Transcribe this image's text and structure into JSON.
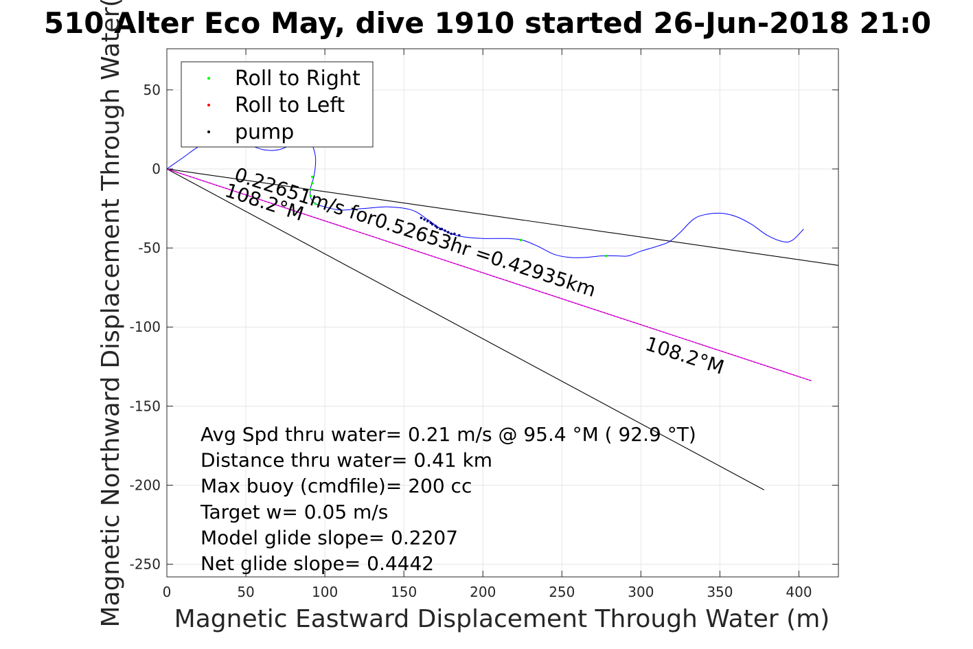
{
  "chart_data": {
    "type": "line",
    "title": "510 Alter Eco May, dive 1910 started 26-Jun-2018 21:0",
    "xlabel": "Magnetic Eastward Displacement Through Water (m)",
    "ylabel": "Magnetic Northward Displacement Through Water(",
    "xlim": [
      0,
      425
    ],
    "ylim": [
      -258,
      76
    ],
    "xticks": [
      0,
      50,
      100,
      150,
      200,
      250,
      300,
      350,
      400
    ],
    "yticks": [
      50,
      0,
      -50,
      -100,
      -150,
      -200,
      -250
    ],
    "grid": true,
    "legend_position": "top-left",
    "legend": [
      {
        "label": "Roll to Right",
        "color": "#00ff00"
      },
      {
        "label": "Roll to Left",
        "color": "#ff0000"
      },
      {
        "label": "pump",
        "color": "#000000"
      }
    ],
    "track": {
      "color": "#0000ff",
      "points": [
        [
          0,
          0
        ],
        [
          10,
          7
        ],
        [
          20,
          14
        ],
        [
          30,
          18
        ],
        [
          45,
          17
        ],
        [
          55,
          14
        ],
        [
          62,
          12
        ],
        [
          70,
          12
        ],
        [
          78,
          15
        ],
        [
          85,
          20
        ],
        [
          88,
          20
        ],
        [
          92,
          15
        ],
        [
          94,
          8
        ],
        [
          94,
          2
        ],
        [
          93,
          -5
        ],
        [
          91,
          -12
        ],
        [
          91,
          -18
        ],
        [
          94,
          -22
        ],
        [
          100,
          -24
        ],
        [
          110,
          -26
        ],
        [
          125,
          -25
        ],
        [
          140,
          -24
        ],
        [
          155,
          -26
        ],
        [
          165,
          -32
        ],
        [
          172,
          -37
        ],
        [
          180,
          -41
        ],
        [
          188,
          -43
        ],
        [
          200,
          -44
        ],
        [
          215,
          -44
        ],
        [
          225,
          -45
        ],
        [
          235,
          -49
        ],
        [
          245,
          -54
        ],
        [
          255,
          -56
        ],
        [
          265,
          -56
        ],
        [
          275,
          -55
        ],
        [
          285,
          -55
        ],
        [
          292,
          -55
        ],
        [
          300,
          -52
        ],
        [
          310,
          -49
        ],
        [
          318,
          -46
        ],
        [
          325,
          -40
        ],
        [
          333,
          -32
        ],
        [
          340,
          -29
        ],
        [
          350,
          -28
        ],
        [
          360,
          -30
        ],
        [
          370,
          -35
        ],
        [
          380,
          -42
        ],
        [
          390,
          -46
        ],
        [
          396,
          -45
        ],
        [
          403,
          -38
        ]
      ]
    },
    "roll_right_points": [
      [
        92,
        -5
      ],
      [
        92,
        -9
      ],
      [
        91,
        -13
      ],
      [
        91,
        -17
      ],
      [
        94,
        -22
      ],
      [
        224,
        -45
      ],
      [
        278,
        -55
      ]
    ],
    "roll_left_points": [],
    "pump_points": [
      [
        161,
        -31
      ],
      [
        163,
        -32
      ],
      [
        165,
        -33
      ],
      [
        167,
        -34
      ],
      [
        168,
        -35
      ],
      [
        170,
        -36
      ],
      [
        171,
        -37
      ],
      [
        173,
        -38
      ],
      [
        174,
        -38
      ],
      [
        176,
        -39
      ],
      [
        178,
        -40
      ],
      [
        180,
        -41
      ],
      [
        182,
        -41
      ],
      [
        185,
        -42
      ]
    ],
    "lines": [
      {
        "name": "heading-upper",
        "color": "#000000",
        "points": [
          [
            0,
            0
          ],
          [
            425,
            -61
          ]
        ]
      },
      {
        "name": "heading-lower",
        "color": "#000000",
        "points": [
          [
            0,
            0
          ],
          [
            378,
            -203
          ]
        ]
      },
      {
        "name": "heading-mean",
        "color": "#ff00ff",
        "points": [
          [
            0,
            0
          ],
          [
            408,
            -134
          ]
        ]
      }
    ],
    "annotations": [
      {
        "text": "0.22651m/s for0.52653hr =0.42935km",
        "x": 42,
        "y": -7,
        "angle": 18.0
      },
      {
        "text": "108.2°M",
        "x": 36,
        "y": -17,
        "angle": 18.0
      },
      {
        "text": "108.2°M",
        "x": 302,
        "y": -114,
        "angle": 18.0
      }
    ],
    "summary": [
      "Avg Spd thru water=  0.21 m/s @  95.4 °M ( 92.9 °T)",
      "Distance thru water=  0.41 km",
      "Max buoy (cmdfile)= 200 cc",
      "Target w= 0.05 m/s",
      "Model glide slope= 0.2207",
      "Net glide slope= 0.4442"
    ]
  }
}
